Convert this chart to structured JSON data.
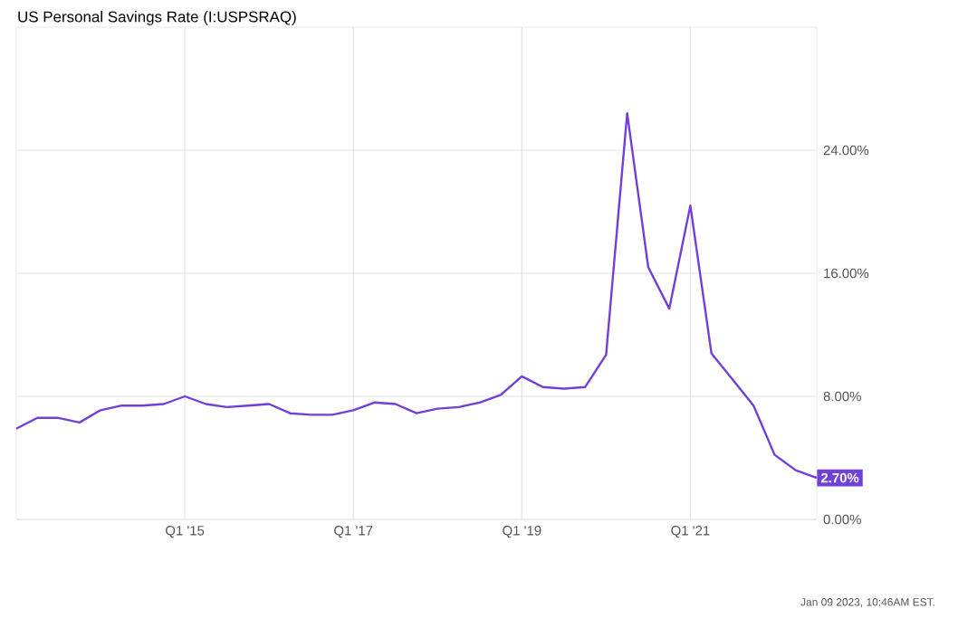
{
  "chart_data": {
    "type": "line",
    "title": "US Personal Savings Rate (I:USPSRAQ)",
    "categories": [
      null,
      null,
      null,
      null,
      null,
      null,
      null,
      null,
      "Q1 '15",
      null,
      null,
      null,
      null,
      null,
      null,
      null,
      "Q1 '17",
      null,
      null,
      null,
      null,
      null,
      null,
      null,
      "Q1 '19",
      null,
      null,
      null,
      null,
      null,
      null,
      null,
      "Q1 '21",
      null,
      null,
      null,
      null,
      null,
      null
    ],
    "series": [
      {
        "color": "#7040d8",
        "values": [
          5.9,
          6.6,
          6.6,
          6.3,
          7.1,
          7.4,
          7.4,
          7.5,
          8.0,
          7.5,
          7.3,
          7.4,
          7.5,
          6.9,
          6.8,
          6.8,
          7.1,
          7.6,
          7.5,
          6.9,
          7.2,
          7.3,
          7.6,
          8.1,
          9.3,
          8.6,
          8.5,
          8.6,
          10.7,
          26.4,
          16.4,
          13.7,
          20.4,
          10.8,
          9.1,
          7.4,
          4.2,
          3.2,
          2.7
        ],
        "value_labels": [
          null,
          null,
          null,
          null,
          null,
          null,
          null,
          null,
          null,
          null,
          null,
          null,
          null,
          null,
          null,
          null,
          null,
          null,
          null,
          null,
          null,
          null,
          null,
          null,
          null,
          null,
          null,
          null,
          null,
          null,
          null,
          null,
          null,
          null,
          null,
          null,
          null,
          null,
          "2.70%"
        ]
      }
    ],
    "ylim": [
      0,
      32
    ],
    "yticks": [
      {
        "value": 0,
        "label": "0.00%"
      },
      {
        "value": 8,
        "label": "8.00%"
      },
      {
        "value": 16,
        "label": "16.00%"
      },
      {
        "value": 24,
        "label": "24.00%"
      }
    ],
    "grid": true,
    "marker": "none",
    "line_style": "solid",
    "annotations": [
      "Jan 09 2023, 10:46AM EST."
    ]
  }
}
